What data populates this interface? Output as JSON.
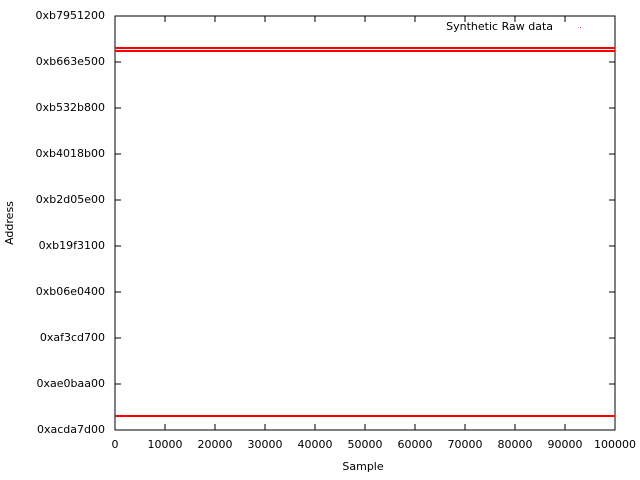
{
  "chart_data": {
    "type": "scatter",
    "xlabel": "Sample",
    "ylabel": "Address",
    "xlim": [
      0,
      100000
    ],
    "xticks": [
      0,
      10000,
      20000,
      30000,
      40000,
      50000,
      60000,
      70000,
      80000,
      90000,
      100000
    ],
    "ylim": [
      2900000000,
      3080000000
    ],
    "yticks": [
      {
        "value": 2900000000,
        "label": "0xacda7d00"
      },
      {
        "value": 2920000000,
        "label": "0xae0baa00"
      },
      {
        "value": 2940000000,
        "label": "0xaf3cd700"
      },
      {
        "value": 2960000000,
        "label": "0xb06e0400"
      },
      {
        "value": 2980000000,
        "label": "0xb19f3100"
      },
      {
        "value": 3000000000,
        "label": "0xb2d05e00"
      },
      {
        "value": 3020000000,
        "label": "0xb4018b00"
      },
      {
        "value": 3040000000,
        "label": "0xb532b800"
      },
      {
        "value": 3060000000,
        "label": "0xb663e500"
      },
      {
        "value": 3080000000,
        "label": "0xb7951200"
      }
    ],
    "legend": "top-right",
    "series": [
      {
        "name": "Synthetic Raw data",
        "color": "#ff0000",
        "x": [
          0,
          100000,
          null,
          0,
          100000,
          null,
          0,
          100000
        ],
        "values": [
          3066100000,
          3066100000,
          null,
          3064800000,
          3064800000,
          null,
          2906100000,
          2906100000
        ]
      }
    ]
  }
}
